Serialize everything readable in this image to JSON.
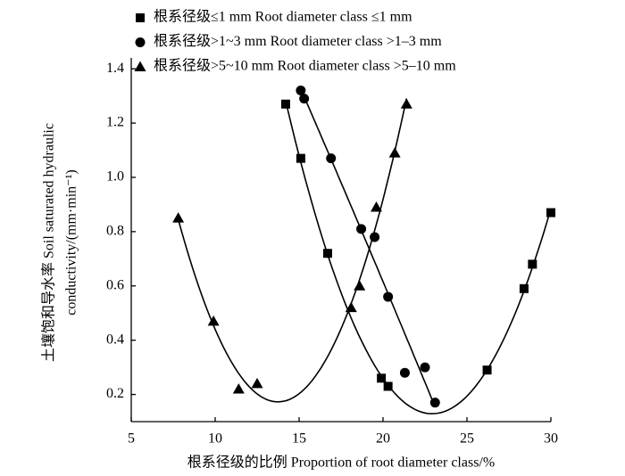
{
  "chart_data": {
    "type": "scatter",
    "xlabel": "根系径级的比例 Proportion of root diameter class/%",
    "ylabel": [
      "土壤饱和导水率 Soil saturated hydraulic",
      "conductivity/(mm·min⁻¹)"
    ],
    "xlim": [
      5,
      30
    ],
    "ylim": [
      0.1,
      1.44
    ],
    "xticks": [
      5,
      10,
      15,
      20,
      25,
      30
    ],
    "yticks": [
      0.2,
      0.4,
      0.6,
      0.8,
      {
        "value": 1,
        "label": "1.0"
      },
      1.2,
      1.4
    ],
    "fit": "quadratic",
    "series": [
      {
        "name": "根系径级≤1 mm Root diameter class ≤1 mm",
        "marker": "square",
        "color": "#000000",
        "x": [
          14.2,
          15.1,
          16.7,
          19.9,
          20.3,
          26.2,
          28.4,
          28.9,
          30.0
        ],
        "values": [
          1.27,
          1.07,
          0.72,
          0.26,
          0.23,
          0.29,
          0.59,
          0.68,
          0.87
        ]
      },
      {
        "name": "根系径级>1~3 mm Root diameter class >1–3 mm",
        "marker": "circle",
        "color": "#000000",
        "x": [
          15.1,
          15.3,
          16.9,
          18.7,
          19.5,
          20.3,
          21.3,
          22.5,
          23.1
        ],
        "values": [
          1.32,
          1.29,
          1.07,
          0.81,
          0.78,
          0.56,
          0.28,
          0.3,
          0.17
        ]
      },
      {
        "name": "根系径级>5~10 mm Root diameter class >5–10 mm",
        "marker": "triangle",
        "color": "#000000",
        "x": [
          7.8,
          9.9,
          11.4,
          12.5,
          18.1,
          18.6,
          19.6,
          20.7,
          21.4
        ],
        "values": [
          0.85,
          0.47,
          0.22,
          0.24,
          0.52,
          0.6,
          0.89,
          1.09,
          1.27
        ]
      }
    ]
  }
}
